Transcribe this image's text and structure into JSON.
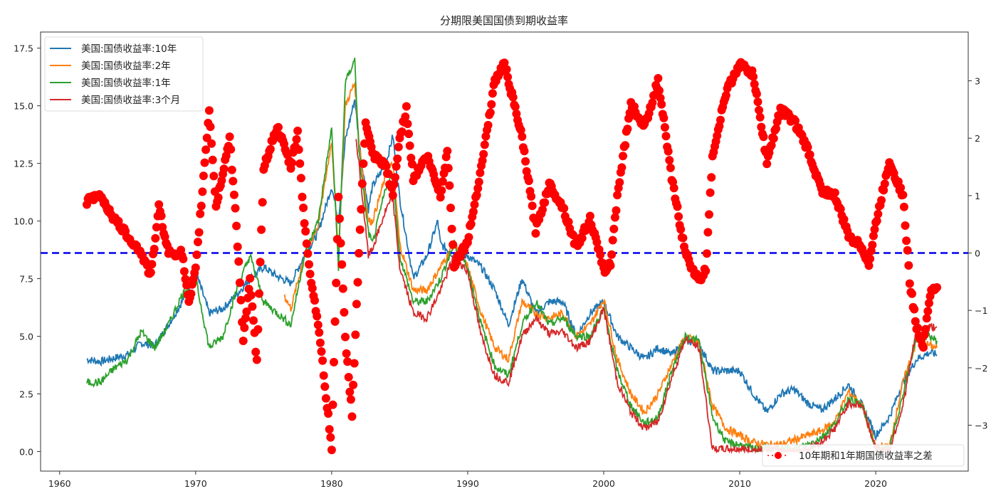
{
  "chart_data": {
    "type": "line",
    "title": "分期限美国国债到期收益率",
    "xlabel": "",
    "ylabel": "",
    "xlim": [
      1958.6,
      2026.8
    ],
    "ylim": [
      -0.85,
      18.2
    ],
    "y2lim": [
      -3.8,
      3.85
    ],
    "x_ticks": [
      1960,
      1970,
      1980,
      1990,
      2000,
      2010,
      2020
    ],
    "x_tick_labels": [
      "1960",
      "1970",
      "1980",
      "1990",
      "2000",
      "2010",
      "2020"
    ],
    "y_ticks": [
      0,
      2.5,
      5,
      7.5,
      10,
      12.5,
      15,
      17.5
    ],
    "y_tick_labels": [
      "0.0",
      "2.5",
      "5.0",
      "7.5",
      "10.0",
      "12.5",
      "15.0",
      "17.5"
    ],
    "y2_ticks": [
      -3,
      -2,
      -1,
      0,
      1,
      2,
      3
    ],
    "y2_tick_labels": [
      "−3",
      "−2",
      "−1",
      "0",
      "1",
      "2",
      "3"
    ],
    "reference_line": {
      "axis": "y2",
      "value": 0,
      "style": "dashed",
      "color": "#0000ee"
    },
    "legend_left": {
      "placement": "top-left",
      "entries": [
        "美国:国债收益率:10年",
        "美国:国债收益率:2年",
        "美国:国债收益率:1年",
        "美国:国债收益率:3个月"
      ]
    },
    "legend_right": {
      "placement": "bottom-right",
      "entries": [
        "10年期和1年期国债收益率之差"
      ]
    },
    "series": [
      {
        "name": "美国:国债收益率:10年",
        "axis": "y",
        "color": "#1f77b4",
        "x": [
          1962,
          1963,
          1965,
          1966,
          1967,
          1968,
          1969,
          1970,
          1971,
          1972,
          1973,
          1974,
          1975,
          1976,
          1977,
          1978,
          1979,
          1980,
          1980.5,
          1981,
          1981.7,
          1982,
          1982.7,
          1983,
          1984,
          1984.5,
          1985,
          1986,
          1987,
          1987.8,
          1988,
          1989,
          1990,
          1991,
          1992,
          1993,
          1994,
          1995,
          1996,
          1997,
          1998,
          1999,
          2000,
          2001,
          2002,
          2003,
          2004,
          2005,
          2006,
          2007,
          2008,
          2009,
          2010,
          2011,
          2012,
          2013,
          2014,
          2015,
          2016,
          2017,
          2018,
          2019,
          2020,
          2021,
          2022,
          2023,
          2024,
          2024.5
        ],
        "y": [
          4.0,
          3.9,
          4.2,
          4.7,
          4.6,
          5.5,
          6.5,
          7.8,
          6.0,
          6.2,
          6.8,
          7.5,
          8.0,
          7.6,
          7.3,
          8.5,
          9.5,
          11.5,
          10.0,
          13.5,
          15.3,
          13.5,
          10.5,
          11.5,
          12.5,
          13.7,
          11.0,
          7.5,
          8.5,
          10.0,
          9.0,
          8.5,
          8.5,
          8.0,
          7.0,
          5.5,
          7.5,
          6.0,
          6.5,
          6.5,
          5.0,
          6.0,
          6.5,
          5.0,
          4.5,
          4.0,
          4.5,
          4.2,
          4.8,
          4.7,
          3.5,
          3.5,
          3.5,
          2.5,
          1.7,
          2.5,
          2.7,
          2.1,
          1.8,
          2.3,
          2.9,
          2.0,
          0.7,
          1.5,
          3.0,
          4.0,
          4.3,
          4.2
        ]
      },
      {
        "name": "美国:国债收益率:2年",
        "axis": "y",
        "color": "#ff7f0e",
        "x": [
          1976.5,
          1977,
          1978,
          1979,
          1980,
          1980.5,
          1981,
          1981.7,
          1982,
          1982.7,
          1983,
          1984,
          1984.5,
          1985,
          1986,
          1987,
          1988,
          1989,
          1990,
          1991,
          1992,
          1993,
          1994,
          1995,
          1996,
          1997,
          1998,
          1999,
          2000,
          2001,
          2002,
          2003,
          2004,
          2005,
          2006,
          2007,
          2008,
          2009,
          2010,
          2011,
          2012,
          2013,
          2014,
          2015,
          2016,
          2017,
          2018,
          2019,
          2020,
          2021,
          2022,
          2023,
          2024,
          2024.5
        ],
        "y": [
          6.8,
          6.2,
          8.5,
          9.8,
          13.5,
          8.5,
          15.0,
          16.0,
          13.5,
          10.0,
          10.0,
          12.0,
          12.5,
          9.0,
          7.0,
          7.0,
          8.0,
          9.0,
          8.0,
          6.0,
          4.5,
          4.0,
          6.5,
          6.0,
          5.8,
          6.0,
          5.0,
          5.5,
          6.6,
          4.0,
          2.5,
          1.7,
          2.5,
          3.8,
          5.0,
          4.7,
          2.0,
          1.0,
          0.7,
          0.4,
          0.3,
          0.3,
          0.5,
          0.7,
          0.9,
          1.3,
          2.6,
          2.0,
          0.2,
          0.2,
          3.0,
          4.8,
          4.6,
          4.5
        ]
      },
      {
        "name": "美国:国债收益率:1年",
        "axis": "y",
        "color": "#2ca02c",
        "x": [
          1962,
          1963,
          1964,
          1965,
          1966,
          1967,
          1968,
          1969,
          1970,
          1971,
          1972,
          1973,
          1974,
          1975,
          1976,
          1977,
          1978,
          1979,
          1980,
          1980.5,
          1981,
          1981.7,
          1982,
          1982.7,
          1983,
          1984,
          1984.5,
          1985,
          1986,
          1987,
          1988,
          1989,
          1990,
          1991,
          1992,
          1993,
          1994,
          1995,
          1996,
          1997,
          1998,
          1999,
          2000,
          2001,
          2002,
          2003,
          2004,
          2005,
          2006,
          2007,
          2008,
          2009,
          2010,
          2011,
          2012,
          2013,
          2014,
          2015,
          2016,
          2017,
          2018,
          2019,
          2020,
          2021,
          2022,
          2023,
          2024,
          2024.5
        ],
        "y": [
          3.0,
          3.0,
          3.6,
          4.0,
          5.2,
          4.5,
          5.5,
          6.8,
          7.5,
          4.5,
          5.0,
          7.0,
          8.5,
          6.5,
          6.0,
          5.5,
          8.5,
          10.0,
          14.0,
          8.0,
          16.0,
          17.0,
          13.0,
          9.5,
          9.0,
          11.5,
          12.0,
          8.5,
          6.5,
          6.5,
          7.5,
          9.0,
          8.0,
          5.5,
          3.7,
          3.3,
          5.5,
          6.5,
          5.5,
          5.8,
          5.0,
          5.0,
          6.2,
          3.5,
          2.0,
          1.2,
          1.5,
          3.5,
          5.0,
          4.8,
          1.5,
          0.4,
          0.3,
          0.1,
          0.15,
          0.12,
          0.1,
          0.3,
          0.6,
          1.2,
          2.3,
          2.0,
          0.1,
          0.07,
          2.5,
          5.0,
          5.0,
          4.8
        ]
      },
      {
        "name": "美国:国债收益率:3个月",
        "axis": "y",
        "color": "#d62728",
        "x": [
          1981.8,
          1982,
          1982.7,
          1983,
          1984,
          1984.5,
          1985,
          1986,
          1987,
          1988,
          1989,
          1990,
          1991,
          1992,
          1993,
          1994,
          1995,
          1996,
          1997,
          1998,
          1999,
          2000,
          2001,
          2002,
          2003,
          2004,
          2005,
          2006,
          2007,
          2008,
          2009,
          2010,
          2011,
          2012,
          2013,
          2014,
          2015,
          2016,
          2017,
          2018,
          2019,
          2020,
          2021,
          2022,
          2023,
          2024,
          2024.5
        ],
        "y": [
          13.5,
          12.5,
          8.5,
          8.8,
          10.5,
          11.0,
          8.0,
          6.0,
          5.8,
          7.0,
          8.5,
          7.8,
          5.0,
          3.3,
          3.0,
          5.0,
          5.8,
          5.1,
          5.2,
          4.5,
          4.8,
          6.2,
          3.0,
          1.7,
          1.0,
          1.3,
          3.2,
          4.9,
          4.5,
          0.1,
          0.1,
          0.1,
          0.05,
          0.08,
          0.05,
          0.03,
          0.1,
          0.4,
          1.0,
          2.1,
          2.0,
          0.1,
          0.05,
          2.0,
          5.3,
          5.4,
          5.4
        ]
      },
      {
        "name": "10年期和1年期国债收益率之差",
        "axis": "y2",
        "color": "#ff0000",
        "style": "dots",
        "x": [
          1962,
          1963,
          1964,
          1965,
          1966,
          1966.7,
          1967.3,
          1968,
          1969,
          1969.5,
          1970,
          1971,
          1971.5,
          1972.5,
          1973,
          1973.5,
          1974,
          1974.5,
          1975,
          1976,
          1977,
          1977.5,
          1978,
          1978.5,
          1979,
          1980,
          1980.5,
          1981,
          1981.5,
          1982,
          1982.5,
          1983,
          1984,
          1984.5,
          1985,
          1985.5,
          1986,
          1987,
          1988,
          1988.5,
          1989,
          1990,
          1991,
          1992,
          1992.7,
          1993.5,
          1994,
          1995,
          1996,
          1997,
          1998,
          1999,
          2000,
          2000.5,
          2001,
          2002,
          2003,
          2004,
          2005,
          2006,
          2007,
          2007.5,
          2008,
          2009,
          2010,
          2011,
          2012,
          2013,
          2014,
          2015,
          2016,
          2017,
          2018,
          2019,
          2019.5,
          2020,
          2021,
          2022,
          2022.5,
          2023,
          2023.5,
          2024,
          2024.5
        ],
        "y": [
          0.9,
          1.0,
          0.6,
          0.3,
          0.0,
          -0.4,
          0.8,
          0.0,
          0.0,
          -0.9,
          -0.3,
          2.5,
          0.8,
          2.0,
          0.5,
          -1.5,
          -0.5,
          -1.9,
          1.5,
          2.2,
          1.5,
          2.1,
          0.5,
          -0.5,
          -1.2,
          -3.4,
          1.0,
          -1.5,
          -2.8,
          0.0,
          2.3,
          1.7,
          1.5,
          1.0,
          2.0,
          2.5,
          1.3,
          1.7,
          1.0,
          1.8,
          -0.2,
          0.2,
          1.5,
          3.0,
          3.3,
          2.5,
          2.0,
          0.4,
          1.2,
          0.8,
          0.1,
          0.6,
          -0.3,
          -0.2,
          1.0,
          2.6,
          2.2,
          3.0,
          1.3,
          0.0,
          -0.5,
          -0.3,
          1.7,
          2.8,
          3.3,
          3.1,
          1.6,
          2.5,
          2.3,
          1.8,
          1.1,
          1.0,
          0.3,
          0.1,
          -0.2,
          0.5,
          1.6,
          1.0,
          -0.5,
          -1.3,
          -1.6,
          -0.7,
          -0.6
        ]
      }
    ]
  }
}
